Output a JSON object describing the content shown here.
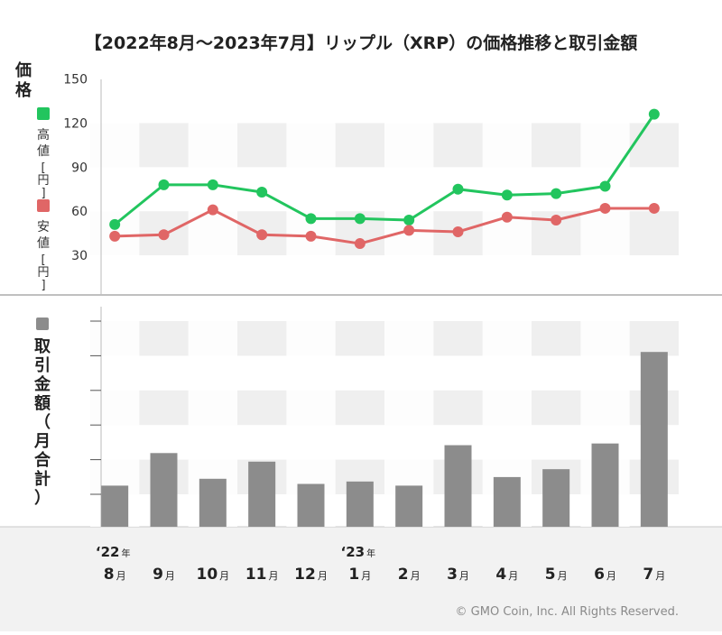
{
  "chart_data": [
    {
      "type": "line",
      "title": "【2022年8月〜2023年7月】リップル（XRP）の価格推移と取引金額",
      "ylabel": "価格",
      "yunit": "[円]",
      "ylim": [
        0,
        150
      ],
      "yticks": [
        30,
        60,
        90,
        120,
        150
      ],
      "categories": [
        "8",
        "9",
        "10",
        "11",
        "12",
        "1",
        "2",
        "3",
        "4",
        "5",
        "6",
        "7"
      ],
      "month_suffix": "月",
      "year_labels": [
        {
          "index": 0,
          "year": "‘22",
          "suffix": "年"
        },
        {
          "index": 5,
          "year": "‘23",
          "suffix": "年"
        }
      ],
      "series": [
        {
          "name": "高値",
          "color": "#22c55e",
          "values": [
            51,
            78,
            78,
            73,
            55,
            55,
            54,
            75,
            71,
            72,
            77,
            126
          ]
        },
        {
          "name": "安値",
          "color": "#e06666",
          "values": [
            43,
            44,
            61,
            44,
            43,
            38,
            47,
            46,
            56,
            54,
            62,
            62
          ]
        }
      ]
    },
    {
      "type": "bar",
      "ylabel": "取引金額（月合計）",
      "color": "#8c8c8c",
      "categories": [
        "8",
        "9",
        "10",
        "11",
        "12",
        "1",
        "2",
        "3",
        "4",
        "5",
        "6",
        "7"
      ],
      "values": [
        12,
        21.5,
        14,
        19,
        12.5,
        13.2,
        12,
        23.8,
        14.5,
        16.8,
        24.3,
        51
      ]
    }
  ],
  "copyright": "© GMO Coin, Inc. All Rights Reserved."
}
